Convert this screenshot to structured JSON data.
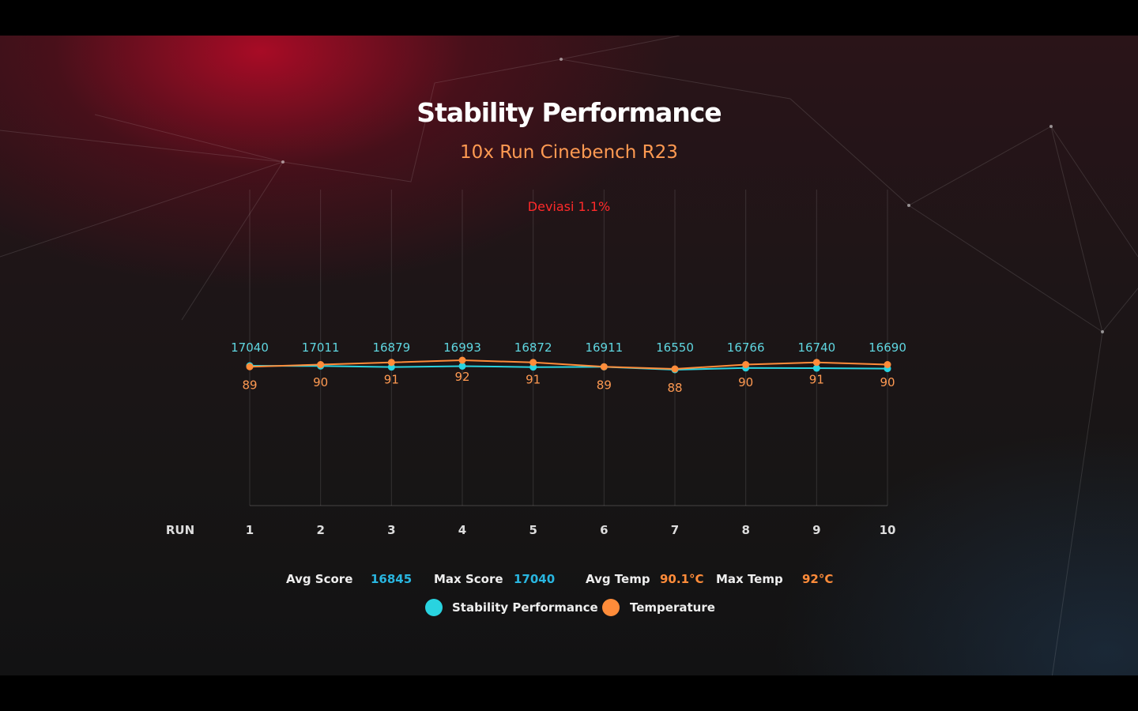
{
  "chart_data": {
    "type": "line",
    "title": "Stability Performance",
    "subtitle": "10x Run Cinebench R23",
    "annotation": "Deviasi 1.1%",
    "xlabel": "RUN",
    "categories": [
      "1",
      "2",
      "3",
      "4",
      "5",
      "6",
      "7",
      "8",
      "9",
      "10"
    ],
    "series": [
      {
        "name": "Stability Performance",
        "color": "#29d3e0",
        "values": [
          17040,
          17011,
          16879,
          16993,
          16872,
          16911,
          16550,
          16766,
          16740,
          16690
        ]
      },
      {
        "name": "Temperature",
        "color": "#ff8c3a",
        "values": [
          89,
          90,
          91,
          92,
          91,
          89,
          88,
          90,
          91,
          90
        ]
      }
    ],
    "grid": true
  },
  "stats": {
    "avg_score_label": "Avg Score",
    "avg_score": "16845",
    "max_score_label": "Max Score",
    "max_score": "17040",
    "avg_temp_label": "Avg Temp",
    "avg_temp": "90.1°C",
    "max_temp_label": "Max Temp",
    "max_temp": "92°C"
  }
}
